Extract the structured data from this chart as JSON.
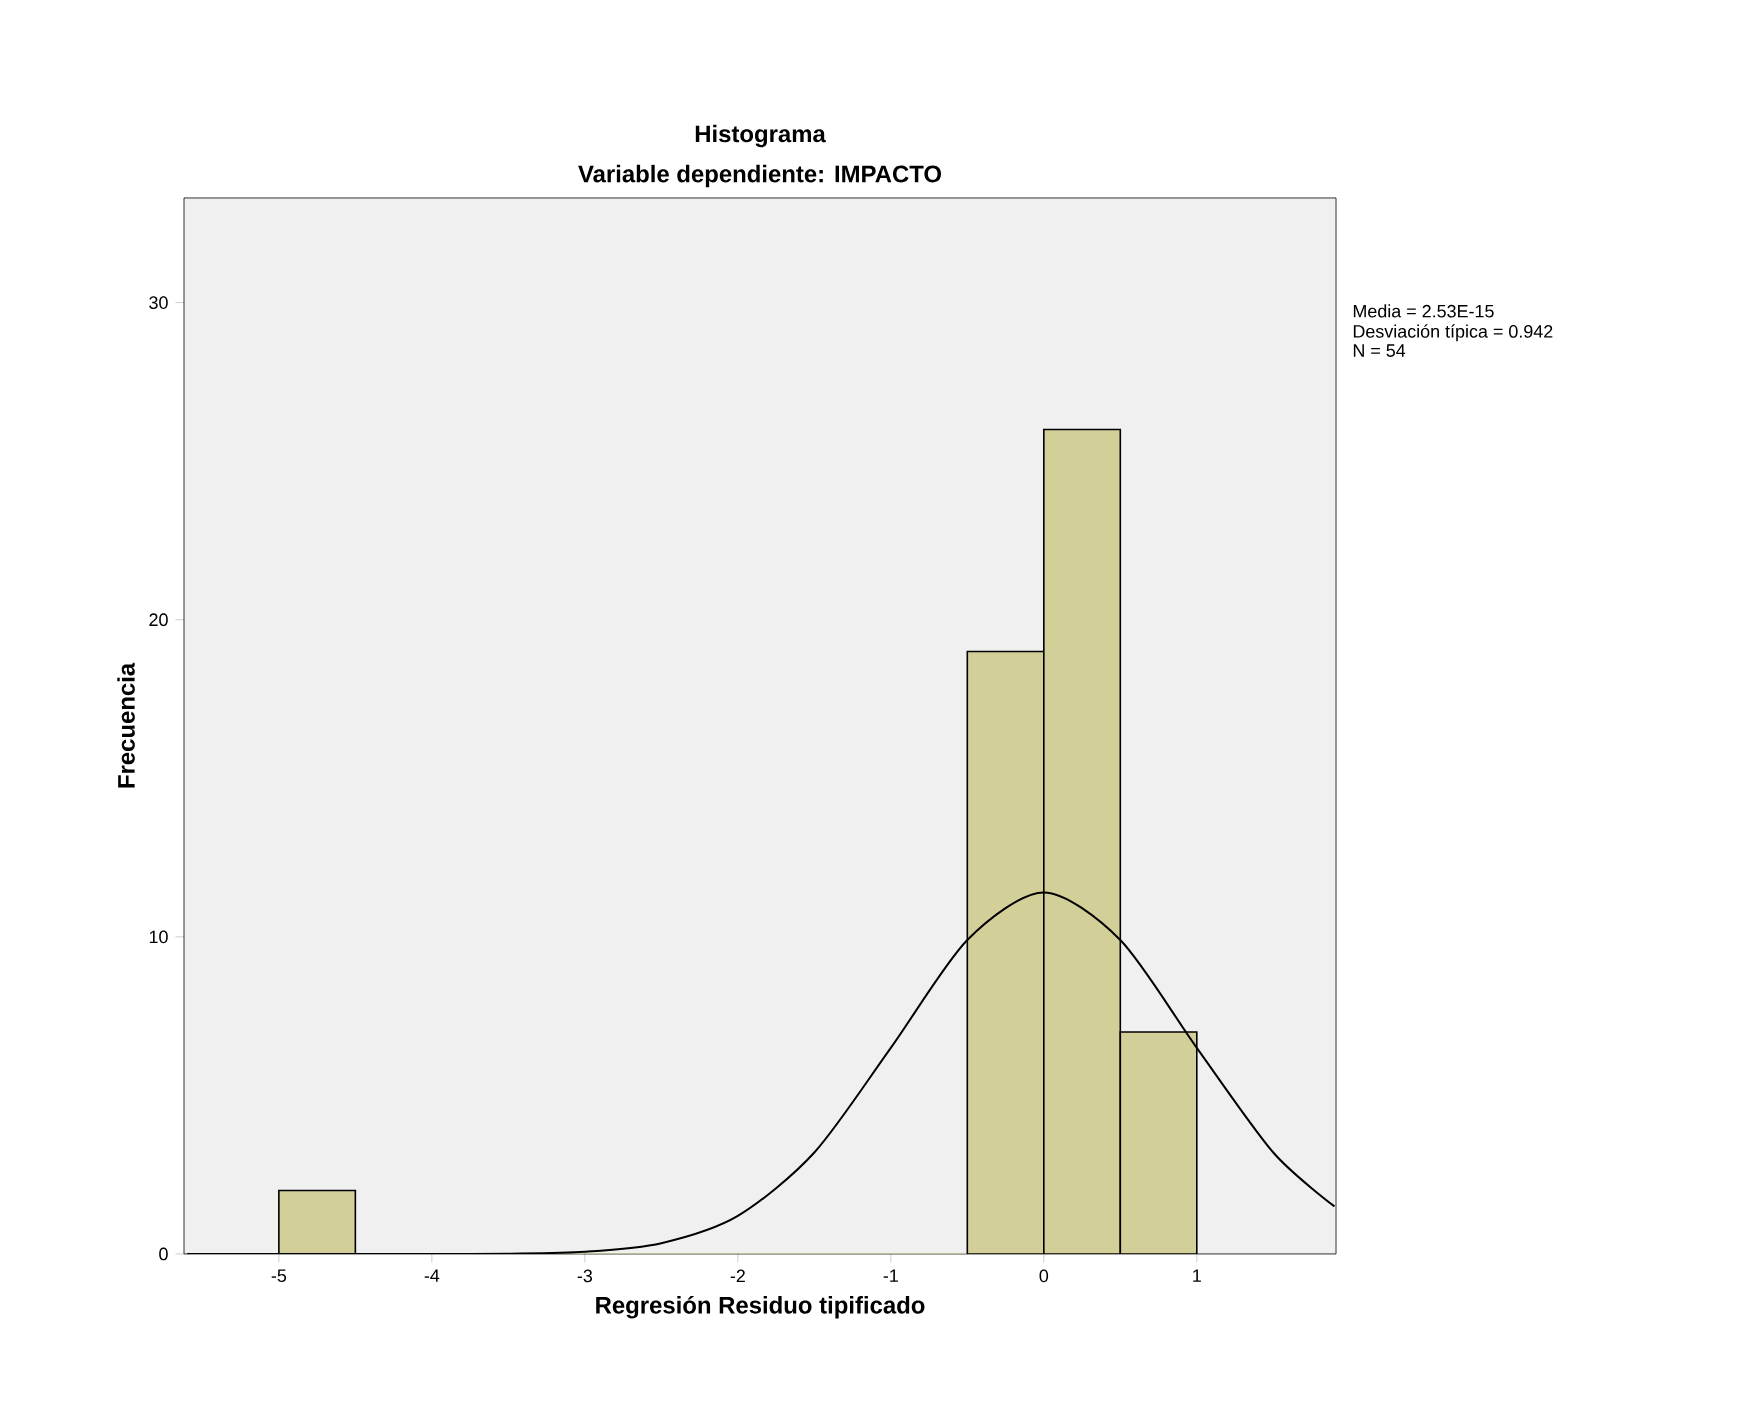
{
  "chart_data": {
    "type": "histogram",
    "title": "Histograma",
    "subtitle": "Variable dependiente: IMPACTO",
    "xlabel": "Regresión Residuo tipificado",
    "ylabel": "Frecuencia",
    "bins": [
      -5,
      -4.5,
      -4,
      -3.5,
      -3,
      -2.5,
      -2,
      -1.5,
      -1,
      -0.5,
      0,
      0.5,
      1
    ],
    "values": [
      2,
      0,
      0,
      0,
      0,
      0,
      0,
      0,
      0,
      19,
      26,
      7
    ],
    "color": "#d3cf98",
    "series": [
      {
        "type": "line",
        "color": "#000000",
        "x": [
          -5.6,
          -4.5,
          -4,
          -3.5,
          -3,
          -2.5,
          -2,
          -1.5,
          -1,
          -0.5,
          0,
          0.5,
          1,
          1.5,
          1.9
        ],
        "values": [
          0,
          0,
          0,
          0.01,
          0.07,
          0.34,
          1.2,
          3.2,
          6.5,
          9.9,
          11.4,
          9.9,
          6.5,
          3.2,
          1.5
        ]
      }
    ],
    "xlim": [
      -5.62,
      1.91
    ],
    "ylim": [
      0,
      33.3
    ],
    "xticks": [
      -5,
      -4,
      -3,
      -2,
      -1,
      0,
      1
    ],
    "yticks": [
      0,
      10,
      20,
      30
    ],
    "annotations": [
      "Media = 2.53E-15",
      "Desviación típica = 0.942",
      "N = 54"
    ],
    "grid": false,
    "marker": "none"
  }
}
